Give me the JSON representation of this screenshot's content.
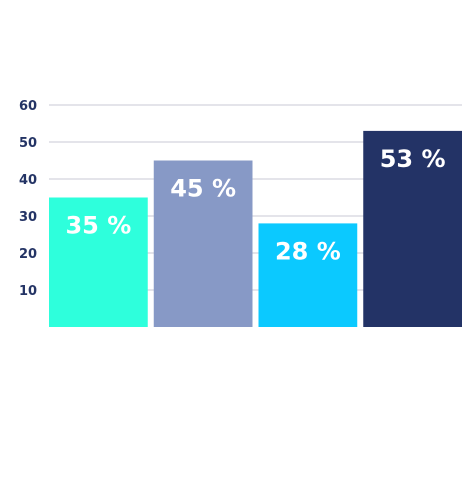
{
  "chart_data": {
    "type": "bar",
    "categories": [
      "",
      "",
      "",
      ""
    ],
    "values": [
      35,
      45,
      28,
      53
    ],
    "data_labels": [
      "35 %",
      "45 %",
      "28 %",
      "53 %"
    ],
    "colors": [
      "#2effdc",
      "#8799c6",
      "#0bc9ff",
      "#233366"
    ],
    "y_ticks": [
      10,
      20,
      30,
      40,
      50,
      60
    ],
    "y_tick_labels": [
      "10",
      "20",
      "30",
      "40",
      "50",
      "60"
    ],
    "ylim": [
      0,
      60
    ],
    "grid": true,
    "legend": "none",
    "title": "",
    "xlabel": "",
    "ylabel": ""
  }
}
